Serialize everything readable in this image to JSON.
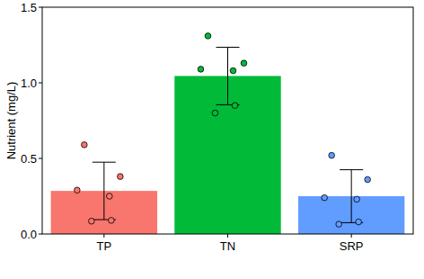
{
  "chart_data": {
    "type": "bar",
    "y_label": "Nutrient (mg/L)",
    "categories": [
      "TP",
      "TN",
      "SRP"
    ],
    "values": [
      0.285,
      1.045,
      0.25
    ],
    "error": [
      0.19,
      0.19,
      0.175
    ],
    "points": [
      [
        0.59,
        0.38,
        0.29,
        0.25,
        0.09,
        0.085
      ],
      [
        1.31,
        1.13,
        1.09,
        1.08,
        0.85,
        0.8
      ],
      [
        0.52,
        0.36,
        0.24,
        0.23,
        0.08,
        0.065
      ]
    ],
    "colors": [
      "#f8766d",
      "#00ba38",
      "#619cff"
    ],
    "ylim": [
      0,
      1.5
    ],
    "yticks": [
      {
        "value": 0,
        "label": "0.0"
      },
      {
        "value": 0.5,
        "label": "0.5"
      },
      {
        "value": 1,
        "label": "1.0"
      },
      {
        "value": 1.5,
        "label": "1.5"
      }
    ],
    "grid": false
  }
}
